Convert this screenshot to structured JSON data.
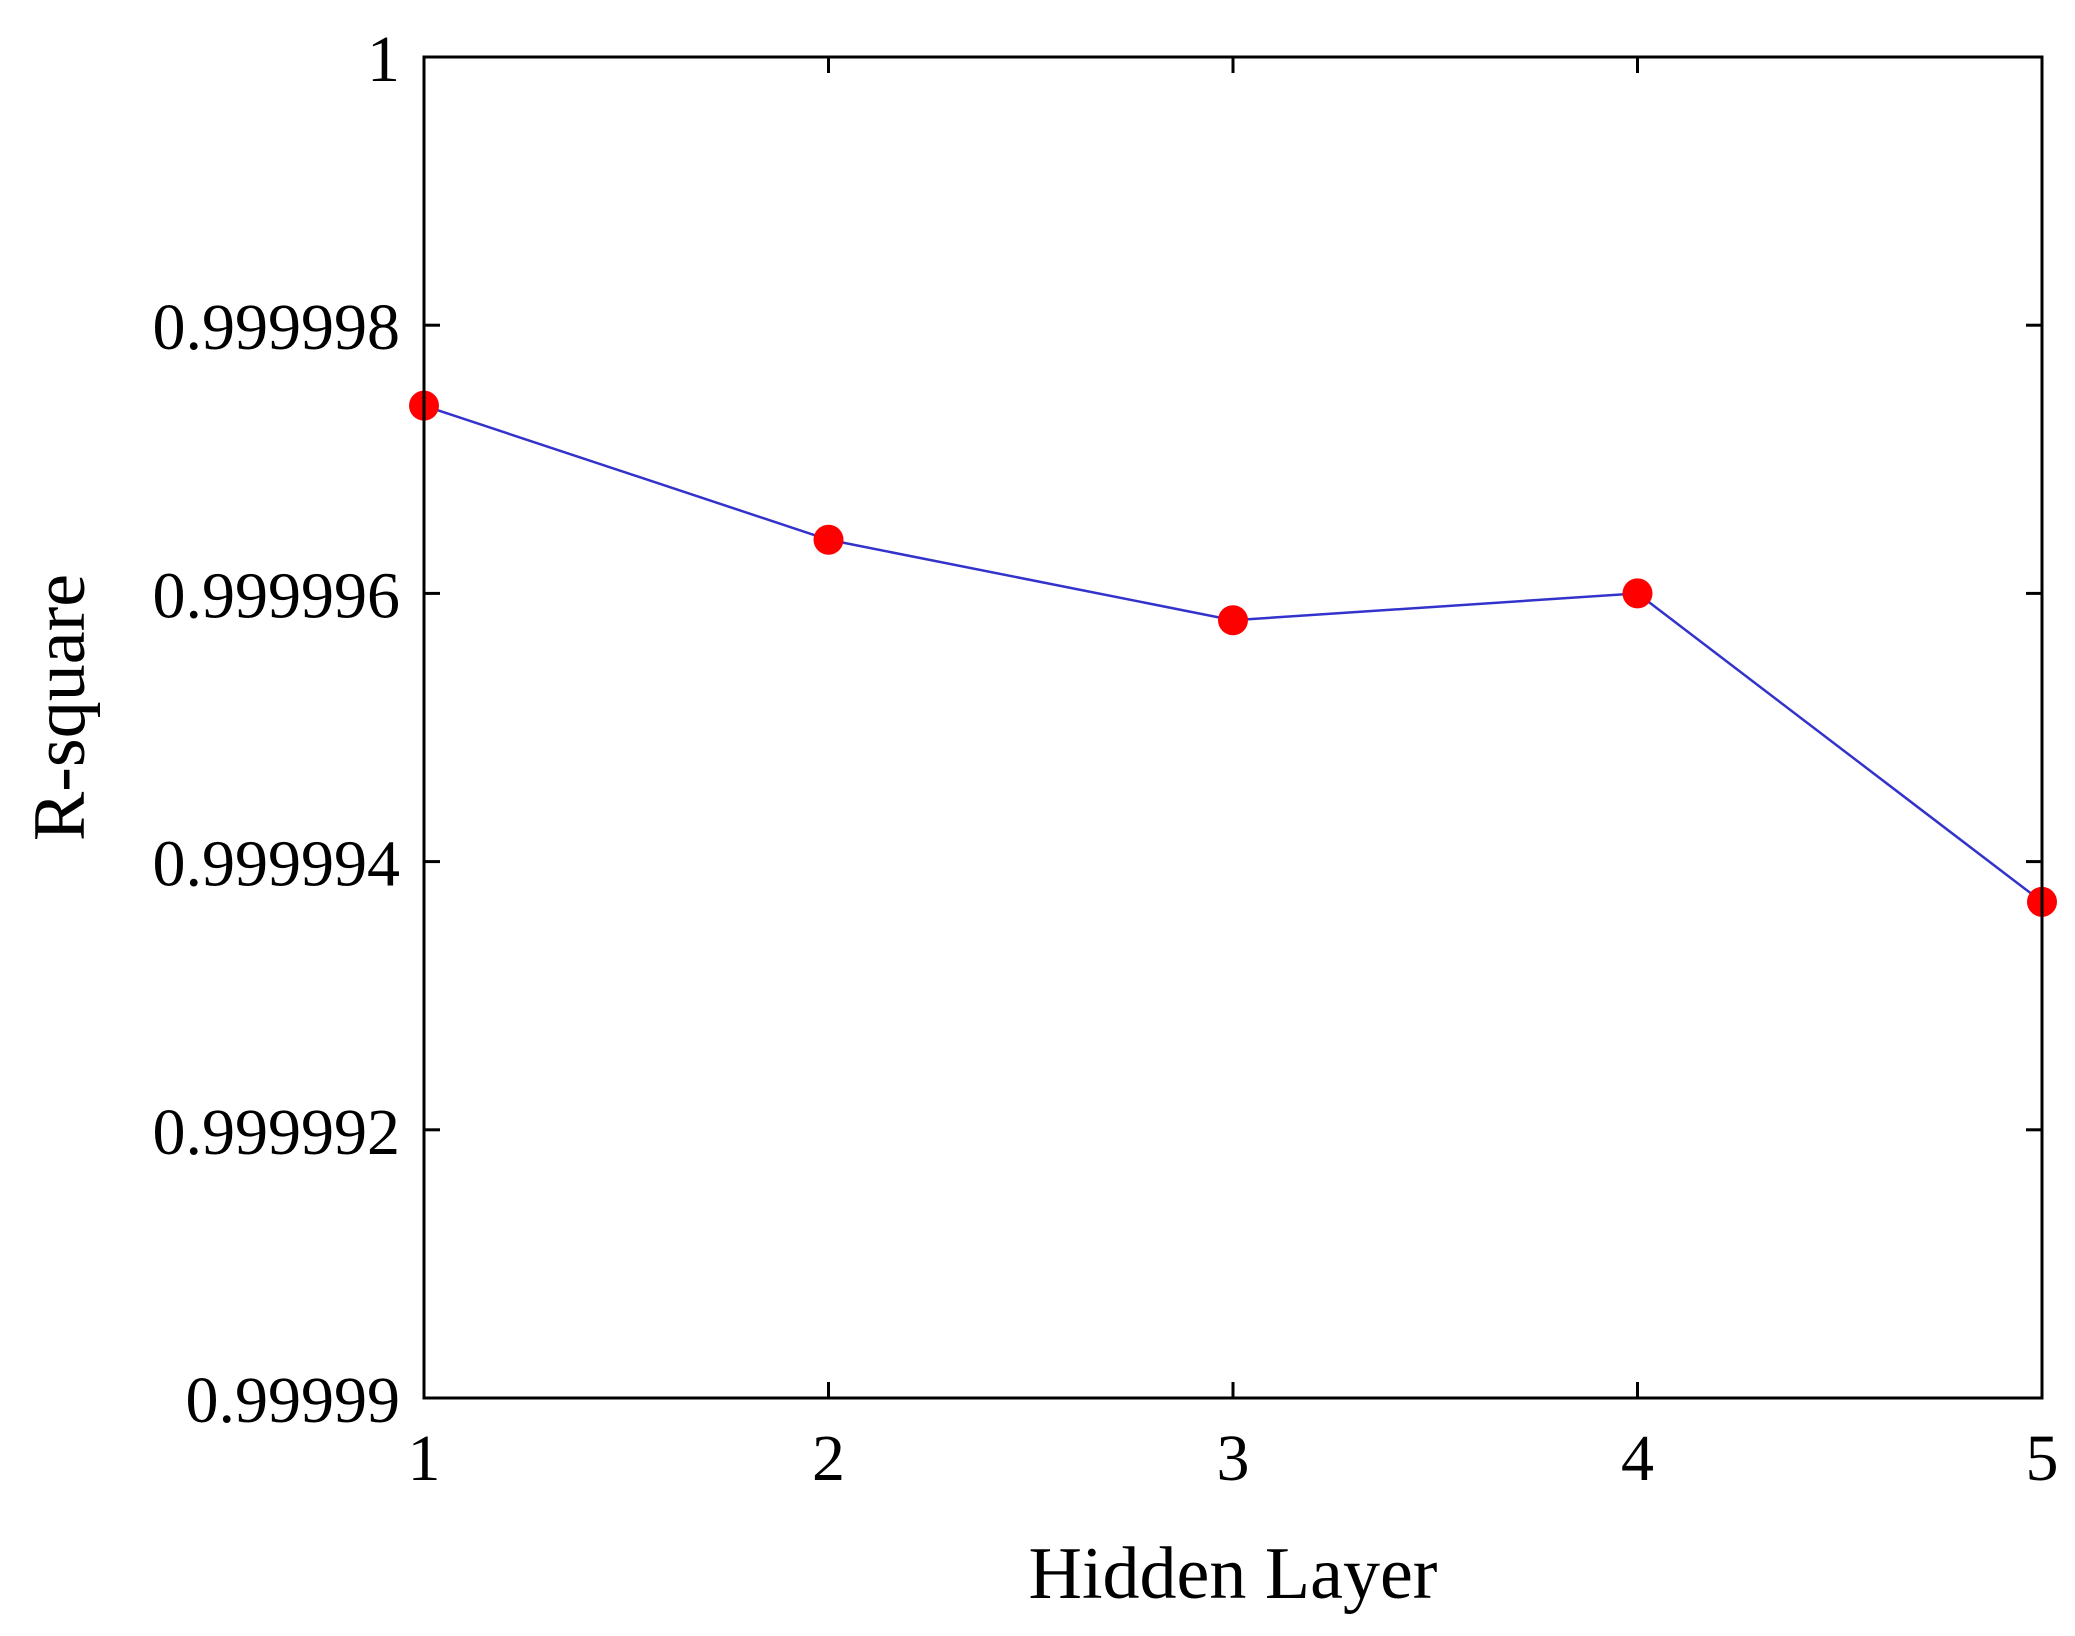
{
  "chart_data": {
    "type": "line",
    "title": "",
    "xlabel": "Hidden Layer",
    "ylabel": "R-square",
    "x": [
      1,
      2,
      3,
      4,
      5
    ],
    "series": [
      {
        "values": [
          0.9999974,
          0.9999964,
          0.9999958,
          0.999996,
          0.9999937
        ],
        "line_color": "#3333cc",
        "marker_color": "#ff0000"
      }
    ],
    "xlim": [
      1,
      5
    ],
    "ylim": [
      0.99999,
      1
    ],
    "x_ticks": [
      1,
      2,
      3,
      4,
      5
    ],
    "x_tick_labels": [
      "1",
      "2",
      "3",
      "4",
      "5"
    ],
    "y_ticks": [
      0.99999,
      0.999992,
      0.999994,
      0.999996,
      0.999998,
      1
    ],
    "y_tick_labels": [
      "0.99999",
      "0.999992",
      "0.999994",
      "0.999996",
      "0.999998",
      "1"
    ],
    "grid": false,
    "legend": false
  }
}
